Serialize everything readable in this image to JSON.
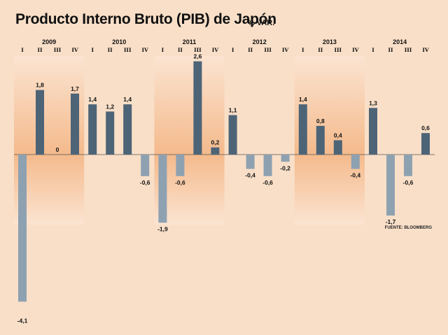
{
  "chart_data": {
    "type": "bar",
    "title": "Producto Interno Bruto (PIB) de Japón",
    "subtitle": "% VAR.",
    "source": "FUENTE: BLOOMBERG",
    "years": [
      "2009",
      "2010",
      "2011",
      "2012",
      "2013",
      "2014"
    ],
    "quarters": [
      "I",
      "II",
      "III",
      "IV"
    ],
    "values": [
      -4.1,
      1.8,
      0,
      1.7,
      1.4,
      1.2,
      1.4,
      -0.6,
      -1.9,
      -0.6,
      2.6,
      0.2,
      1.1,
      -0.4,
      -0.6,
      -0.2,
      1.4,
      0.8,
      0.4,
      -0.4,
      1.3,
      -1.7,
      -0.6,
      0.6
    ],
    "labels": [
      "-4,1",
      "1,8",
      "0",
      "1,7",
      "1,4",
      "1,2",
      "1,4",
      "-0,6",
      "-1,9",
      "-0,6",
      "2,6",
      "0,2",
      "1,1",
      "-0,4",
      "-0,6",
      "-0,2",
      "1,4",
      "0,8",
      "0,4",
      "-0,4",
      "1,3",
      "-1,7",
      "-0,6",
      "0,6"
    ],
    "ylim": [
      -4.1,
      2.6
    ],
    "colors": {
      "positive": "#4d6477",
      "negative": "#8ea1b1",
      "background": "#f9dfc8",
      "band_light": "#fbe4d1",
      "band_dark": "#f4ba8c",
      "zero_line": "#555555",
      "text": "#111111"
    }
  }
}
